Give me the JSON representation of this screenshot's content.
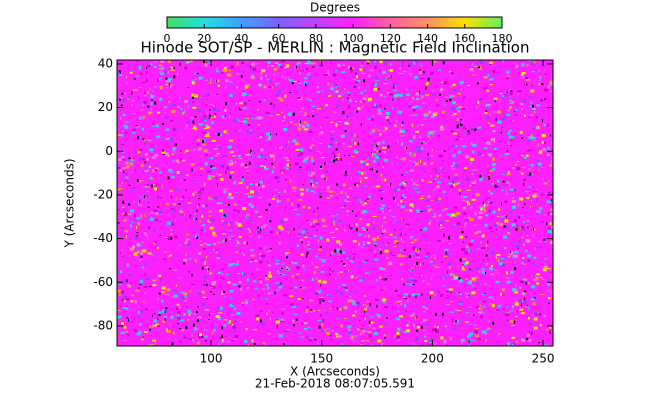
{
  "chart_data": {
    "type": "image",
    "title": "Hinode SOT/SP - MERLIN : Magnetic Field Inclination",
    "x_label": "X (Arcseconds)",
    "y_label": "Y (Arcseconds)",
    "date": "21-Feb-2018 08:07:05.591",
    "xlim": [
      57.5,
      254.5
    ],
    "xticks": [
      100,
      150,
      200,
      250
    ],
    "ylim": [
      -89.2,
      41.8
    ],
    "yticks": [
      -80,
      -60,
      -40,
      -20,
      0,
      20,
      40
    ],
    "colorbar": {
      "label": "Degrees",
      "lim": [
        0,
        180
      ],
      "ticks": [
        0,
        20,
        40,
        60,
        80,
        100,
        120,
        140,
        160,
        180
      ],
      "colors": [
        "#40e060",
        "#20e0e0",
        "#40a0ff",
        "#8060ff",
        "#c040ff",
        "#ff20ff",
        "#ff60a0",
        "#ff9060",
        "#ffe000",
        "#60f060"
      ]
    }
  }
}
